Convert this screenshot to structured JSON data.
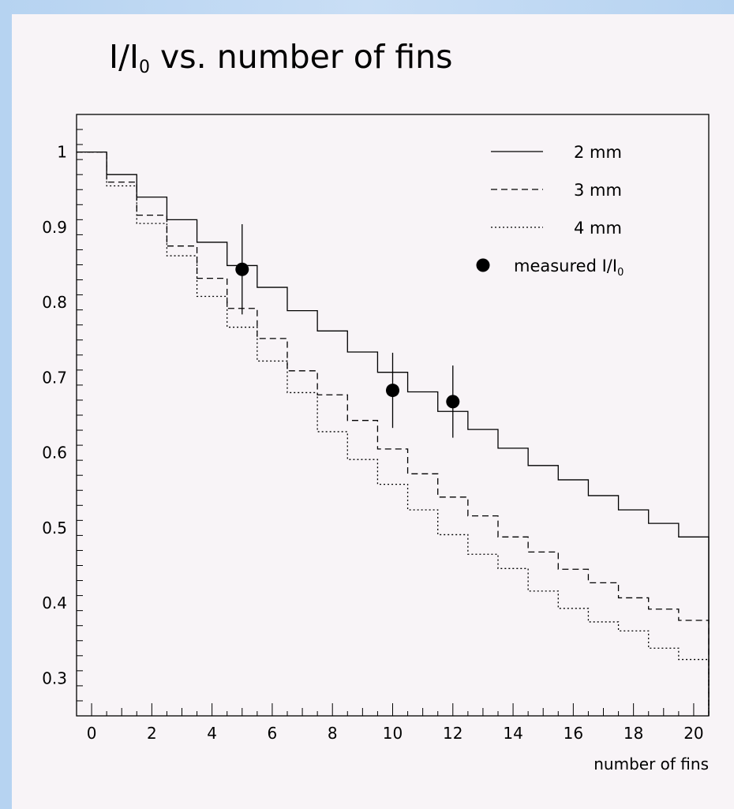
{
  "title": {
    "prefix": "I/I",
    "subscript": "0",
    "suffix": " vs. number of fins"
  },
  "chart_data": {
    "type": "line",
    "title": "I/I0 vs. number of fins",
    "xlabel": "number of fins",
    "ylabel": "",
    "xlim": [
      -0.5,
      20.5
    ],
    "ylim": [
      0.25,
      1.05
    ],
    "x_ticks": [
      0,
      2,
      4,
      6,
      8,
      10,
      12,
      14,
      16,
      18,
      20
    ],
    "y_ticks": [
      0.3,
      0.4,
      0.5,
      0.6,
      0.7,
      0.8,
      0.9,
      1
    ],
    "grid": false,
    "legend_position": "top-right",
    "x": [
      0,
      1,
      2,
      3,
      4,
      5,
      6,
      7,
      8,
      9,
      10,
      11,
      12,
      13,
      14,
      15,
      16,
      17,
      18,
      19,
      20
    ],
    "series": [
      {
        "name": "2 mm",
        "style": "solid",
        "values": [
          1.0,
          0.97,
          0.94,
          0.91,
          0.88,
          0.849,
          0.82,
          0.789,
          0.762,
          0.734,
          0.707,
          0.681,
          0.655,
          0.631,
          0.606,
          0.583,
          0.564,
          0.543,
          0.524,
          0.506,
          0.488
        ]
      },
      {
        "name": "3 mm",
        "style": "dashed",
        "values": [
          1.0,
          0.96,
          0.916,
          0.875,
          0.832,
          0.792,
          0.752,
          0.709,
          0.677,
          0.643,
          0.605,
          0.572,
          0.541,
          0.516,
          0.488,
          0.468,
          0.445,
          0.427,
          0.407,
          0.392,
          0.377
        ]
      },
      {
        "name": "4 mm",
        "style": "dotted",
        "values": [
          1.0,
          0.955,
          0.905,
          0.862,
          0.808,
          0.767,
          0.722,
          0.68,
          0.628,
          0.591,
          0.558,
          0.524,
          0.491,
          0.465,
          0.446,
          0.416,
          0.393,
          0.375,
          0.363,
          0.34,
          0.325
        ]
      }
    ],
    "measured": {
      "name": "measured I/I0",
      "label_main": "measured I/I",
      "label_sub": "0",
      "points": [
        {
          "x": 5,
          "y": 0.844,
          "err": 0.06
        },
        {
          "x": 10,
          "y": 0.683,
          "err": 0.05
        },
        {
          "x": 12,
          "y": 0.668,
          "err": 0.048
        }
      ]
    }
  }
}
